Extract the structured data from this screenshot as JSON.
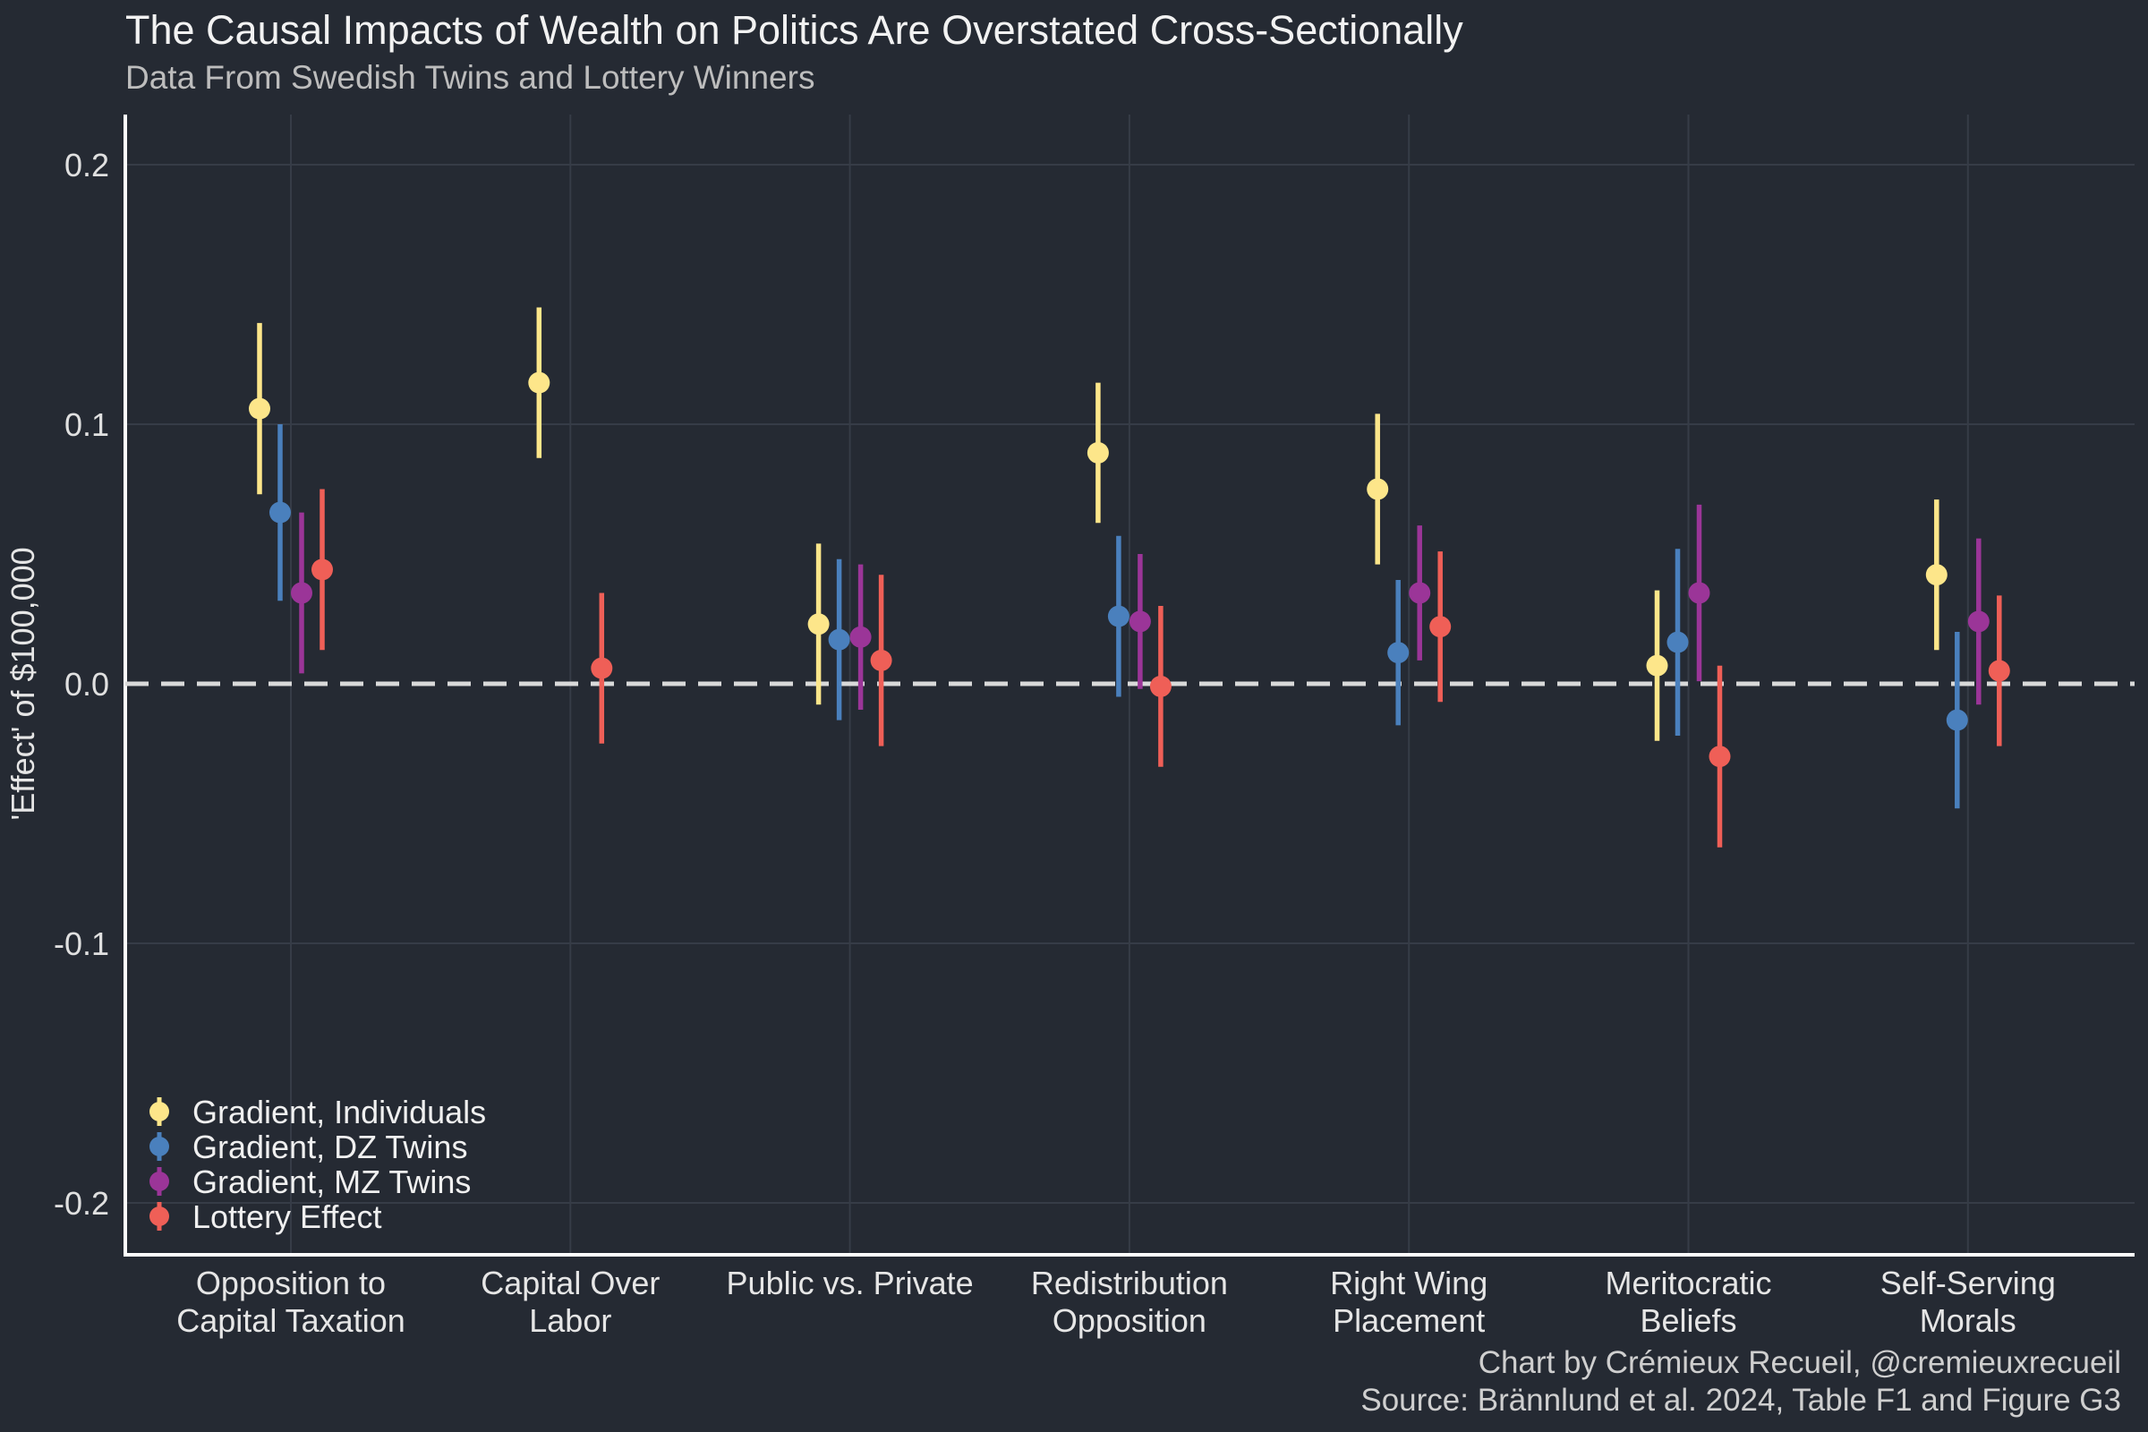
{
  "title": "The Causal Impacts of Wealth on Politics Are Overstated Cross-Sectionally",
  "subtitle": "Data From Swedish Twins and Lottery Winners",
  "caption": {
    "line1": "Chart by Crémieux Recueil, @cremieuxrecueil",
    "line2": "Source: Brännlund et al. 2024, Table F1 and Figure G3"
  },
  "chart_data": {
    "type": "scatter",
    "subtype": "point-range with error bars",
    "ylabel": "'Effect' of $100,000",
    "xlabel": "",
    "ylim": [
      -0.22,
      0.22
    ],
    "y_ticks": [
      0.2,
      0.1,
      0.0,
      -0.1,
      -0.2
    ],
    "y_tick_labels": [
      "0.2",
      "0.1",
      "0.0",
      "-0.1",
      "-0.2"
    ],
    "reference_line": 0.0,
    "legend_position": "bottom-left",
    "categories": [
      [
        "Opposition to",
        "Capital Taxation"
      ],
      [
        "Capital Over",
        "Labor"
      ],
      [
        "Public vs. Private"
      ],
      [
        "Redistribution",
        "Opposition"
      ],
      [
        "Right Wing",
        "Placement"
      ],
      [
        "Meritocratic",
        "Beliefs"
      ],
      [
        "Self-Serving",
        "Morals"
      ]
    ],
    "series": [
      {
        "name": "Gradient, Individuals",
        "color": "#fde68a",
        "values": [
          0.106,
          0.116,
          0.023,
          0.089,
          0.075,
          0.007,
          0.042
        ],
        "lower": [
          0.073,
          0.087,
          -0.008,
          0.062,
          0.046,
          -0.022,
          0.013
        ],
        "upper": [
          0.139,
          0.145,
          0.054,
          0.116,
          0.104,
          0.036,
          0.071
        ]
      },
      {
        "name": "Gradient, DZ Twins",
        "color": "#4a80bd",
        "values": [
          0.066,
          null,
          0.017,
          0.026,
          0.012,
          0.016,
          -0.014
        ],
        "lower": [
          0.032,
          null,
          -0.014,
          -0.005,
          -0.016,
          -0.02,
          -0.048
        ],
        "upper": [
          0.1,
          null,
          0.048,
          0.057,
          0.04,
          0.052,
          0.02
        ]
      },
      {
        "name": "Gradient, MZ Twins",
        "color": "#9b3598",
        "values": [
          0.035,
          null,
          0.018,
          0.024,
          0.035,
          0.035,
          0.024
        ],
        "lower": [
          0.004,
          null,
          -0.01,
          -0.002,
          0.009,
          0.001,
          -0.008
        ],
        "upper": [
          0.066,
          null,
          0.046,
          0.05,
          0.061,
          0.069,
          0.056
        ]
      },
      {
        "name": "Lottery Effect",
        "color": "#ef5f57",
        "values": [
          0.044,
          0.006,
          0.009,
          -0.001,
          0.022,
          -0.028,
          0.005
        ],
        "lower": [
          0.013,
          -0.023,
          -0.024,
          -0.032,
          -0.007,
          -0.063,
          -0.024
        ],
        "upper": [
          0.075,
          0.035,
          0.042,
          0.03,
          0.051,
          0.007,
          0.034
        ]
      }
    ]
  }
}
